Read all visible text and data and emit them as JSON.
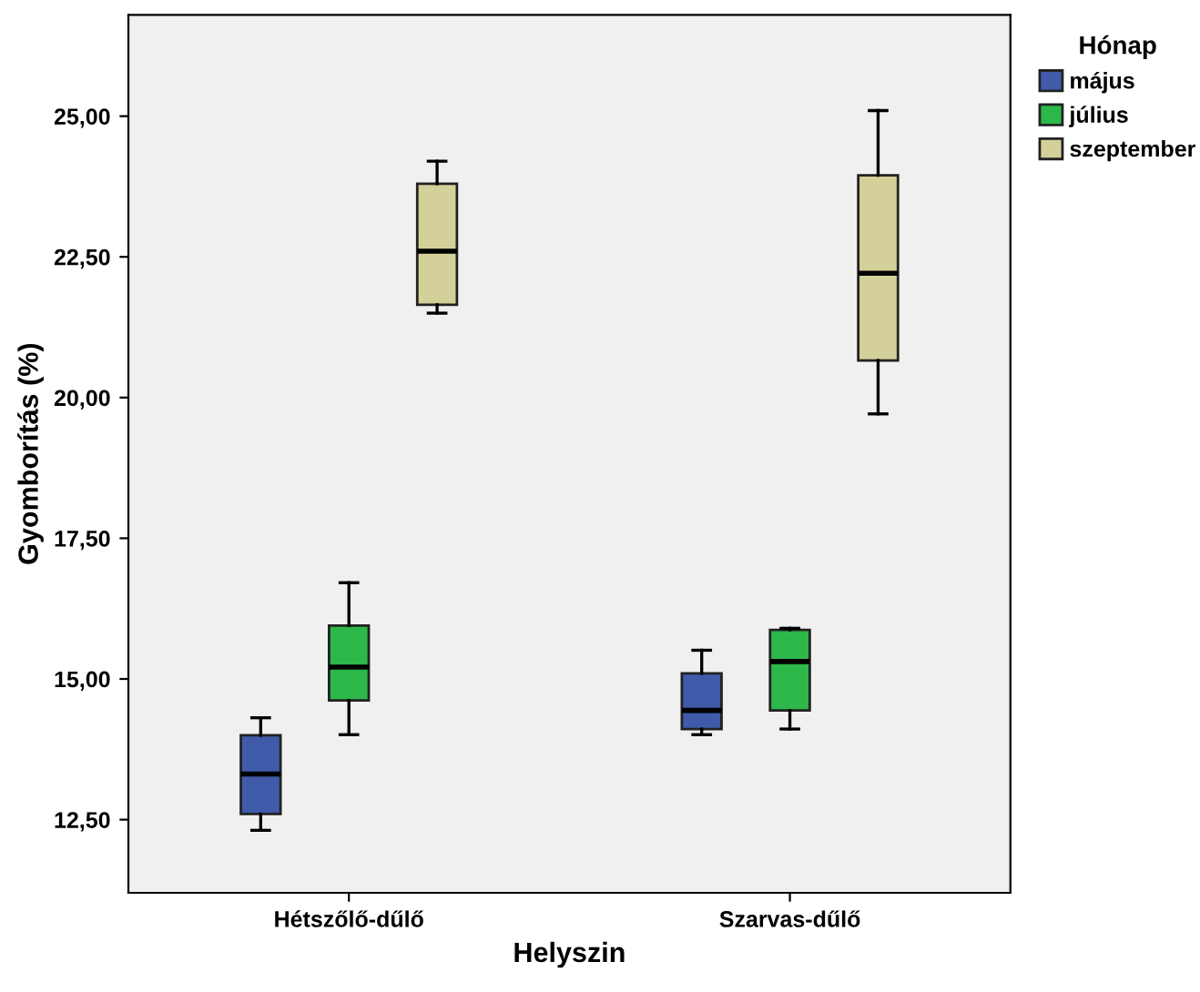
{
  "chart_data": {
    "type": "box",
    "xlabel": "Helyszin",
    "ylabel": "Gyomborítás (%)",
    "legend_title": "Hónap",
    "categories": [
      "Hétszőlő-dűlő",
      "Szarvas-dűlő"
    ],
    "series": [
      {
        "name": "május",
        "color": "#3f5baa",
        "boxes": [
          {
            "low": 12.31,
            "q1": 12.6,
            "median": 13.31,
            "q3": 14.0,
            "high": 14.31
          },
          {
            "low": 14.01,
            "q1": 14.11,
            "median": 14.44,
            "q3": 15.1,
            "high": 15.51
          }
        ]
      },
      {
        "name": "július",
        "color": "#2db84a",
        "boxes": [
          {
            "low": 14.01,
            "q1": 14.62,
            "median": 15.21,
            "q3": 15.95,
            "high": 16.71
          },
          {
            "low": 14.11,
            "q1": 14.44,
            "median": 15.31,
            "q3": 15.87,
            "high": 15.9
          }
        ]
      },
      {
        "name": "szeptember",
        "color": "#d4d09a",
        "boxes": [
          {
            "low": 21.5,
            "q1": 21.65,
            "median": 22.6,
            "q3": 23.8,
            "high": 24.2
          },
          {
            "low": 19.71,
            "q1": 20.66,
            "median": 22.21,
            "q3": 23.95,
            "high": 25.1
          }
        ]
      }
    ],
    "ylim": [
      11.2,
      26.8
    ],
    "yticks": [
      {
        "value": 12.5,
        "label": "12,50"
      },
      {
        "value": 15,
        "label": "15,00"
      },
      {
        "value": 17.5,
        "label": "17,50"
      },
      {
        "value": 20,
        "label": "20,00"
      },
      {
        "value": 22.5,
        "label": "22,50"
      },
      {
        "value": 25,
        "label": "25,00"
      }
    ],
    "grid": false,
    "legend": "top right"
  }
}
